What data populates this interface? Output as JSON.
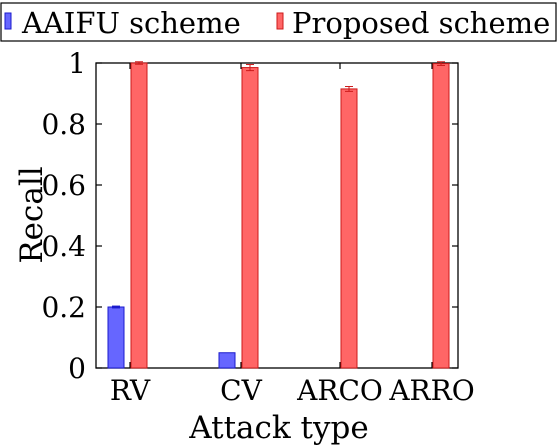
{
  "chart_data": {
    "type": "bar",
    "xlabel": "Attack type",
    "ylabel": "Recall",
    "categories": [
      "RV",
      "CV",
      "ARCO",
      "ARRO"
    ],
    "ylim": [
      0,
      1
    ],
    "yticks": [
      0,
      0.2,
      0.4,
      0.6,
      0.8,
      1
    ],
    "ytick_labels": [
      "0",
      "0.2",
      "0.4",
      "0.6",
      "0.8",
      "1"
    ],
    "grid": false,
    "legend_position": "top",
    "series": [
      {
        "name": "AAIFU scheme",
        "color": "#6666ff",
        "stroke": "#1a1acc",
        "values": [
          0.2,
          0.05,
          0,
          0
        ],
        "errors": [
          0.003,
          0,
          0,
          0
        ]
      },
      {
        "name": "Proposed scheme",
        "color": "#ff6666",
        "stroke": "#cc1a1a",
        "values": [
          1.0,
          0.985,
          0.915,
          0.998
        ],
        "errors": [
          0.004,
          0.01,
          0.008,
          0.006
        ]
      }
    ]
  }
}
